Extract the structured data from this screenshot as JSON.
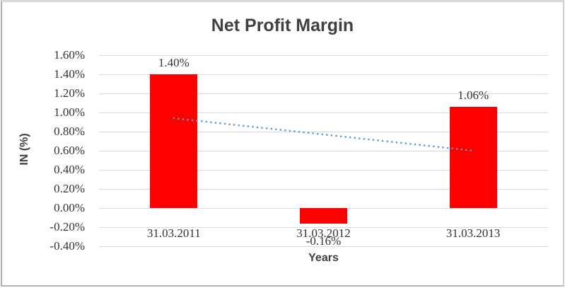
{
  "chart_data": {
    "type": "bar",
    "title": "Net Profit Margin",
    "xlabel": "Years",
    "ylabel": "IN (%)",
    "categories": [
      "31.03.2011",
      "31.03.2012",
      "31.03.2013"
    ],
    "values": [
      1.4,
      -0.16,
      1.06
    ],
    "data_labels": [
      "1.40%",
      "-0.16%",
      "1.06%"
    ],
    "ytick_labels": [
      "1.60%",
      "1.40%",
      "1.20%",
      "1.00%",
      "0.80%",
      "0.60%",
      "0.40%",
      "0.20%",
      "0.00%",
      "-0.20%",
      "-0.40%"
    ],
    "ylim": [
      -0.4,
      1.6
    ],
    "grid": true,
    "legend": false,
    "bar_color": "#FF0000",
    "trendline": {
      "type": "linear",
      "style": "dotted",
      "color": "#5B9BD5",
      "start_value": 0.94,
      "end_value": 0.6
    },
    "colors": {
      "title_text": "#404040",
      "axis_title_text": "#404040",
      "tick_text": "#333333",
      "gridline": "#D9D9D9",
      "frame_border": "#BFBFBF",
      "background": "#FFFFFF"
    }
  }
}
